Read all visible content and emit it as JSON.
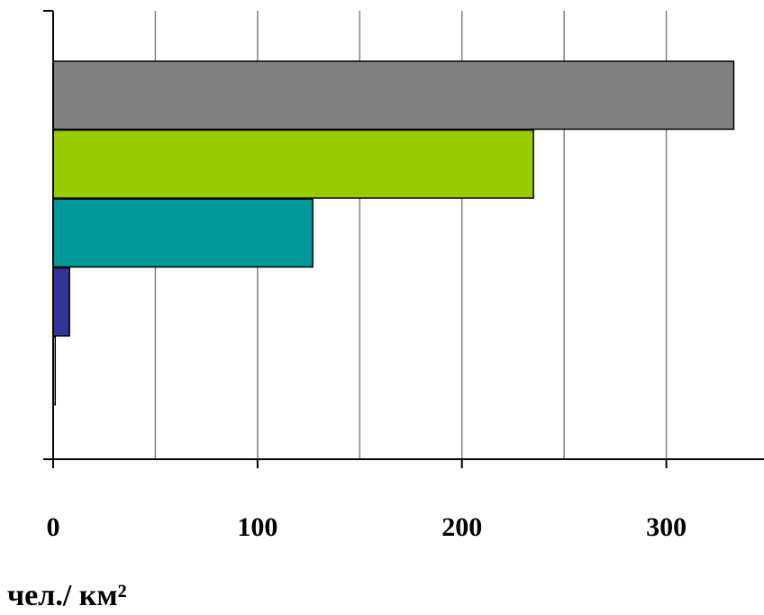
{
  "chart_data": {
    "type": "hbar",
    "x_label": "чел./ км²",
    "categories": [
      null,
      null,
      null,
      null,
      null
    ],
    "values": [
      333,
      235,
      127,
      8,
      1
    ],
    "colors": [
      "#808080",
      "#99cc00",
      "#009999",
      "#333399",
      "#ffffff"
    ],
    "xlim": [
      0,
      350
    ],
    "xticks": [
      0,
      100,
      200,
      300
    ],
    "minor_xticks": [
      50,
      150,
      250,
      350
    ],
    "grid": true
  }
}
